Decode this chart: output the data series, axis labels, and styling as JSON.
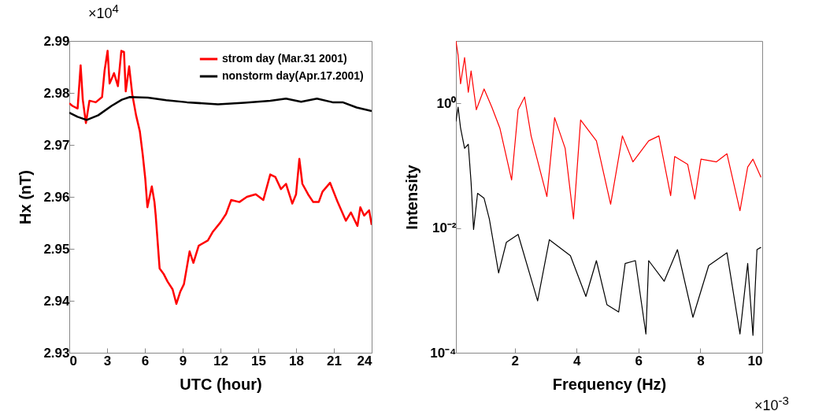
{
  "chart_data": [
    {
      "type": "line",
      "xlabel": "UTC (hour)",
      "ylabel": "Hx (nT)",
      "xlim": [
        0,
        24
      ],
      "xticks": [
        0,
        3,
        6,
        9,
        12,
        15,
        18,
        21,
        24
      ],
      "ylim": [
        2.93,
        2.99
      ],
      "yticks": [
        2.93,
        2.94,
        2.95,
        2.96,
        2.97,
        2.98,
        2.99
      ],
      "grid": false,
      "legend": "top right",
      "annotations": [
        "×10$^{4}$"
      ],
      "series": [
        {
          "name": "strom day (Mar.31 2001)",
          "color": "#ff0000",
          "x": [
            0,
            0.25,
            0.66,
            0.9,
            1.07,
            1.32,
            1.6,
            2.1,
            2.6,
            2.8,
            3.04,
            3.2,
            3.55,
            3.86,
            4.13,
            4.34,
            4.48,
            4.75,
            5.0,
            5.3,
            5.6,
            5.83,
            6.03,
            6.2,
            6.55,
            6.76,
            6.86,
            7.17,
            7.48,
            7.8,
            8.2,
            8.5,
            8.8,
            9.1,
            9.55,
            9.85,
            10.27,
            11.0,
            11.4,
            12.0,
            12.44,
            12.85,
            13.5,
            14.1,
            14.8,
            15.4,
            15.95,
            16.36,
            16.8,
            17.2,
            17.7,
            18.0,
            18.26,
            18.5,
            18.95,
            19.36,
            19.8,
            20.1,
            20.7,
            21.3,
            21.95,
            22.35,
            22.87,
            23.1,
            23.4,
            23.8,
            24
          ],
          "values": [
            2.978,
            2.9775,
            2.977,
            2.9853,
            2.9787,
            2.9742,
            2.9785,
            2.9782,
            2.9792,
            2.9843,
            2.9881,
            2.9818,
            2.9838,
            2.9813,
            2.9881,
            2.9879,
            2.9803,
            2.9851,
            2.9797,
            2.9757,
            2.9726,
            2.9681,
            2.9635,
            2.958,
            2.962,
            2.959,
            2.9564,
            2.9462,
            2.9452,
            2.9437,
            2.9422,
            2.9394,
            2.9417,
            2.9432,
            2.9495,
            2.9473,
            2.9506,
            2.9516,
            2.9533,
            2.9551,
            2.9567,
            2.9594,
            2.959,
            2.96,
            2.9605,
            2.9594,
            2.9643,
            2.9638,
            2.9615,
            2.9625,
            2.9587,
            2.9605,
            2.9673,
            2.9625,
            2.9605,
            2.959,
            2.959,
            2.961,
            2.9627,
            2.959,
            2.9554,
            2.957,
            2.9544,
            2.958,
            2.9564,
            2.9574,
            2.9546
          ]
        },
        {
          "name": "nonstorm day(Apr.17.2001)",
          "color": "#000000",
          "x": [
            0,
            0.66,
            1.38,
            2.3,
            3.35,
            4.17,
            4.8,
            6.24,
            7.69,
            9.34,
            11.8,
            13.9,
            15.95,
            17.2,
            18.4,
            19.66,
            20.9,
            21.7,
            22.8,
            24
          ],
          "values": [
            2.9762,
            2.9754,
            2.9748,
            2.9757,
            2.9775,
            2.9787,
            2.9792,
            2.9791,
            2.9786,
            2.9782,
            2.9778,
            2.9781,
            2.9785,
            2.9789,
            2.9783,
            2.9789,
            2.9782,
            2.9782,
            2.9772,
            2.9765
          ]
        }
      ]
    },
    {
      "type": "line",
      "xlabel": "Frequency (Hz)",
      "ylabel": "Intensity",
      "xlim": [
        0.1,
        10
      ],
      "xticks": [
        2,
        4,
        6,
        8,
        10
      ],
      "ylim": [
        0.0001,
        10
      ],
      "yticks": [
        {
          "value": 0.0001,
          "label": "10⁻⁴"
        },
        {
          "value": 0.01,
          "label": "10⁻²"
        },
        {
          "value": 1,
          "label": "10⁰"
        }
      ],
      "log": "y",
      "grid": false,
      "annotations": [
        "×10$^{-3}$"
      ],
      "series": [
        {
          "color": "#ff0000",
          "x": [
            0.1,
            0.17,
            0.25,
            0.38,
            0.5,
            0.59,
            0.76,
            1.01,
            1.26,
            1.52,
            1.9,
            2.11,
            2.32,
            2.53,
            3.04,
            3.29,
            3.63,
            3.9,
            4.13,
            4.64,
            5.1,
            5.48,
            5.82,
            6.33,
            6.66,
            7.04,
            7.17,
            7.59,
            7.82,
            8.02,
            8.52,
            8.86,
            9.28,
            9.53,
            9.7,
            9.96
          ],
          "values": [
            10,
            5.9,
            2.05,
            5.4,
            1.5,
            3.3,
            0.79,
            1.7,
            0.87,
            0.4,
            0.059,
            0.79,
            1.26,
            0.3,
            0.032,
            0.59,
            0.19,
            0.014,
            0.54,
            0.25,
            0.024,
            0.3,
            0.115,
            0.25,
            0.3,
            0.033,
            0.14,
            0.105,
            0.029,
            0.127,
            0.115,
            0.155,
            0.019,
            0.095,
            0.127,
            0.065
          ]
        },
        {
          "color": "#000000",
          "x": [
            0.1,
            0.17,
            0.25,
            0.38,
            0.5,
            0.59,
            0.67,
            0.8,
            1.01,
            1.18,
            1.48,
            1.73,
            2.11,
            2.74,
            3.12,
            3.8,
            4.3,
            4.64,
            4.98,
            5.36,
            5.57,
            5.9,
            6.24,
            6.33,
            6.83,
            7.26,
            7.76,
            8.27,
            8.86,
            9.28,
            9.53,
            9.7,
            9.83,
            9.96
          ],
          "values": [
            0.51,
            0.87,
            0.4,
            0.19,
            0.22,
            0.054,
            0.0095,
            0.036,
            0.03,
            0.014,
            0.0019,
            0.0059,
            0.0079,
            0.00068,
            0.0065,
            0.0036,
            0.0008,
            0.003,
            0.00059,
            0.00045,
            0.0027,
            0.003,
            0.0002,
            0.003,
            0.0014,
            0.0045,
            0.00037,
            0.0025,
            0.004,
            0.0002,
            0.0027,
            0.00019,
            0.0045,
            0.0049
          ]
        }
      ]
    }
  ]
}
